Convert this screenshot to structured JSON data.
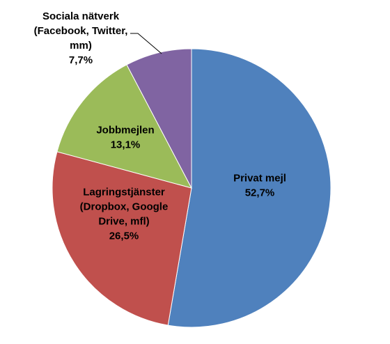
{
  "chart_data": {
    "type": "pie",
    "title": "",
    "legend": "none",
    "start_angle_deg": 0,
    "direction": "clockwise",
    "slices": [
      {
        "label_lines": [
          "Privat mejl"
        ],
        "value": 52.7,
        "value_label": "52,7%",
        "color": "#4F81BD"
      },
      {
        "label_lines": [
          "Lagringstjänster",
          "(Dropbox, Google",
          "Drive, mfl)"
        ],
        "value": 26.5,
        "value_label": "26,5%",
        "color": "#C0504D"
      },
      {
        "label_lines": [
          "Jobbmejlen"
        ],
        "value": 13.1,
        "value_label": "13,1%",
        "color": "#9BBB59"
      },
      {
        "label_lines": [
          "Sociala nätverk",
          "(Facebook, Twitter,",
          "mm)"
        ],
        "value": 7.7,
        "value_label": "7,7%",
        "color": "#8064A2"
      }
    ]
  }
}
